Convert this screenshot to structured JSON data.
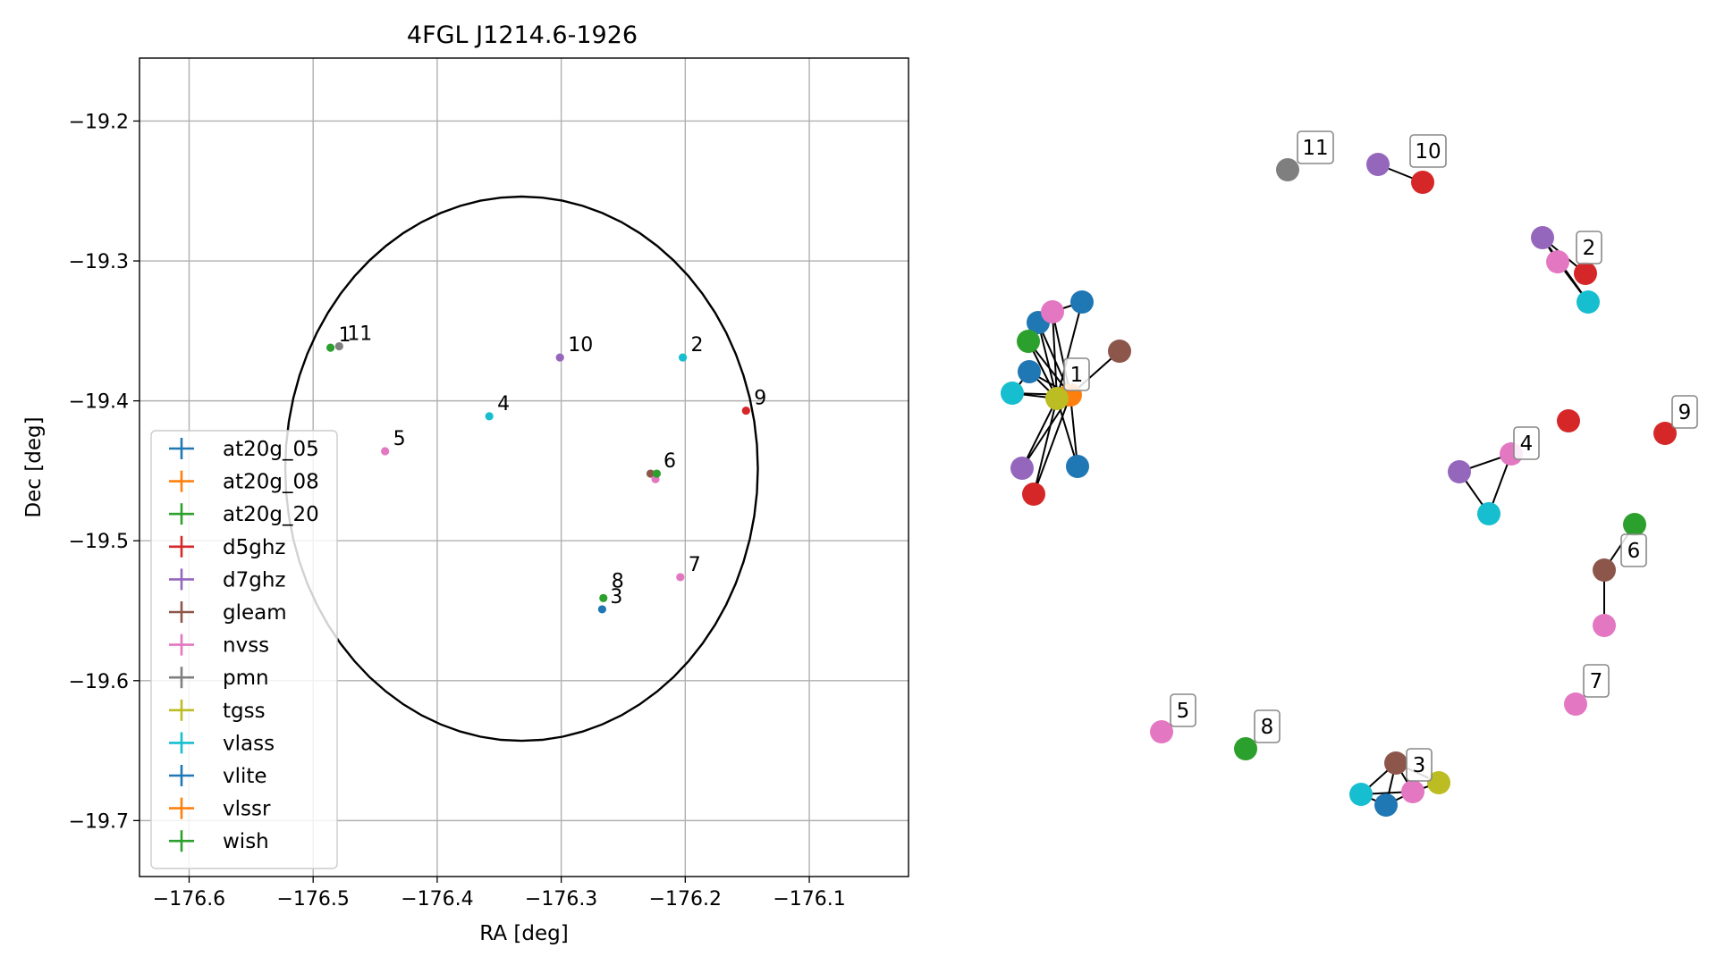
{
  "chart_data": [
    {
      "type": "scatter",
      "title": "4FGL J1214.6-1926",
      "xlabel": "RA [deg]",
      "ylabel": "Dec [deg]",
      "xlim": [
        -176.64,
        -176.02
      ],
      "ylim": [
        -19.74,
        -19.155
      ],
      "xticks": [
        -176.6,
        -176.5,
        -176.4,
        -176.3,
        -176.2,
        -176.1
      ],
      "xtick_labels": [
        "−176.6",
        "−176.5",
        "−176.4",
        "−176.3",
        "−176.2",
        "−176.1"
      ],
      "yticks": [
        -19.2,
        -19.3,
        -19.4,
        -19.5,
        -19.6,
        -19.7
      ],
      "ytick_labels": [
        "−19.2",
        "−19.3",
        "−19.4",
        "−19.5",
        "−19.6",
        "−19.7"
      ],
      "grid": true,
      "legend_position": "lower-left",
      "ellipse": {
        "center": [
          -176.332,
          -19.4485
        ],
        "semi_axis_ra": 0.1905,
        "semi_axis_dec": 0.1945
      },
      "series": [
        {
          "name": "at20g_05",
          "color": "#1f77b4",
          "points": []
        },
        {
          "name": "at20g_08",
          "color": "#ff7f0e",
          "points": []
        },
        {
          "name": "at20g_20",
          "color": "#2ca02c",
          "points": [
            {
              "x": -176.486,
              "y": -19.362
            }
          ]
        },
        {
          "name": "d5ghz",
          "color": "#d62728",
          "points": [
            {
              "x": -176.151,
              "y": -19.407
            }
          ]
        },
        {
          "name": "d7ghz",
          "color": "#9467bd",
          "points": [
            {
              "x": -176.301,
              "y": -19.369
            }
          ]
        },
        {
          "name": "gleam",
          "color": "#8c564b",
          "points": [
            {
              "x": -176.228,
              "y": -19.452
            }
          ]
        },
        {
          "name": "nvss",
          "color": "#e377c2",
          "points": [
            {
              "x": -176.442,
              "y": -19.436
            },
            {
              "x": -176.224,
              "y": -19.456
            },
            {
              "x": -176.204,
              "y": -19.526
            }
          ]
        },
        {
          "name": "pmn",
          "color": "#7f7f7f",
          "points": [
            {
              "x": -176.479,
              "y": -19.361
            }
          ]
        },
        {
          "name": "tgss",
          "color": "#bcbd22",
          "points": []
        },
        {
          "name": "vlass",
          "color": "#17becf",
          "points": [
            {
              "x": -176.358,
              "y": -19.411
            },
            {
              "x": -176.202,
              "y": -19.369
            }
          ]
        },
        {
          "name": "vlite",
          "color": "#1f77b4",
          "points": [
            {
              "x": -176.267,
              "y": -19.549
            }
          ]
        },
        {
          "name": "vlssr",
          "color": "#ff7f0e",
          "points": []
        },
        {
          "name": "wish",
          "color": "#2ca02c",
          "points": [
            {
              "x": -176.266,
              "y": -19.541
            },
            {
              "x": -176.223,
              "y": -19.452
            }
          ]
        }
      ],
      "annotations": [
        {
          "text": "1",
          "x": -176.486,
          "y": -19.362
        },
        {
          "text": "11",
          "x": -176.479,
          "y": -19.361
        },
        {
          "text": "10",
          "x": -176.301,
          "y": -19.369
        },
        {
          "text": "2",
          "x": -176.202,
          "y": -19.369
        },
        {
          "text": "9",
          "x": -176.151,
          "y": -19.407
        },
        {
          "text": "4",
          "x": -176.358,
          "y": -19.411
        },
        {
          "text": "5",
          "x": -176.442,
          "y": -19.436
        },
        {
          "text": "6",
          "x": -176.224,
          "y": -19.452
        },
        {
          "text": "7",
          "x": -176.204,
          "y": -19.526
        },
        {
          "text": "8",
          "x": -176.266,
          "y": -19.538
        },
        {
          "text": "3",
          "x": -176.267,
          "y": -19.549
        }
      ]
    },
    {
      "type": "network",
      "groups": [
        {
          "label": "1",
          "nodes": [
            "#1f77b4",
            "#1f77b4",
            "#1f77b4",
            "#1f77b4",
            "#ff7f0e",
            "#2ca02c",
            "#d62728",
            "#9467bd",
            "#8c564b",
            "#e377c2",
            "#bcbd22",
            "#17becf"
          ]
        },
        {
          "label": "2",
          "nodes": [
            "#9467bd",
            "#e377c2",
            "#d62728",
            "#17becf"
          ]
        },
        {
          "label": "3",
          "nodes": [
            "#8c564b",
            "#17becf",
            "#1f77b4",
            "#e377c2",
            "#bcbd22"
          ]
        },
        {
          "label": "4",
          "nodes": [
            "#9467bd",
            "#e377c2",
            "#17becf",
            "#d62728"
          ]
        },
        {
          "label": "5",
          "nodes": [
            "#e377c2"
          ]
        },
        {
          "label": "6",
          "nodes": [
            "#2ca02c",
            "#8c564b",
            "#e377c2"
          ]
        },
        {
          "label": "7",
          "nodes": [
            "#e377c2"
          ]
        },
        {
          "label": "8",
          "nodes": [
            "#2ca02c"
          ]
        },
        {
          "label": "9",
          "nodes": [
            "#d62728"
          ]
        },
        {
          "label": "10",
          "nodes": [
            "#9467bd",
            "#d62728"
          ]
        },
        {
          "label": "11",
          "nodes": [
            "#7f7f7f"
          ]
        }
      ]
    }
  ]
}
